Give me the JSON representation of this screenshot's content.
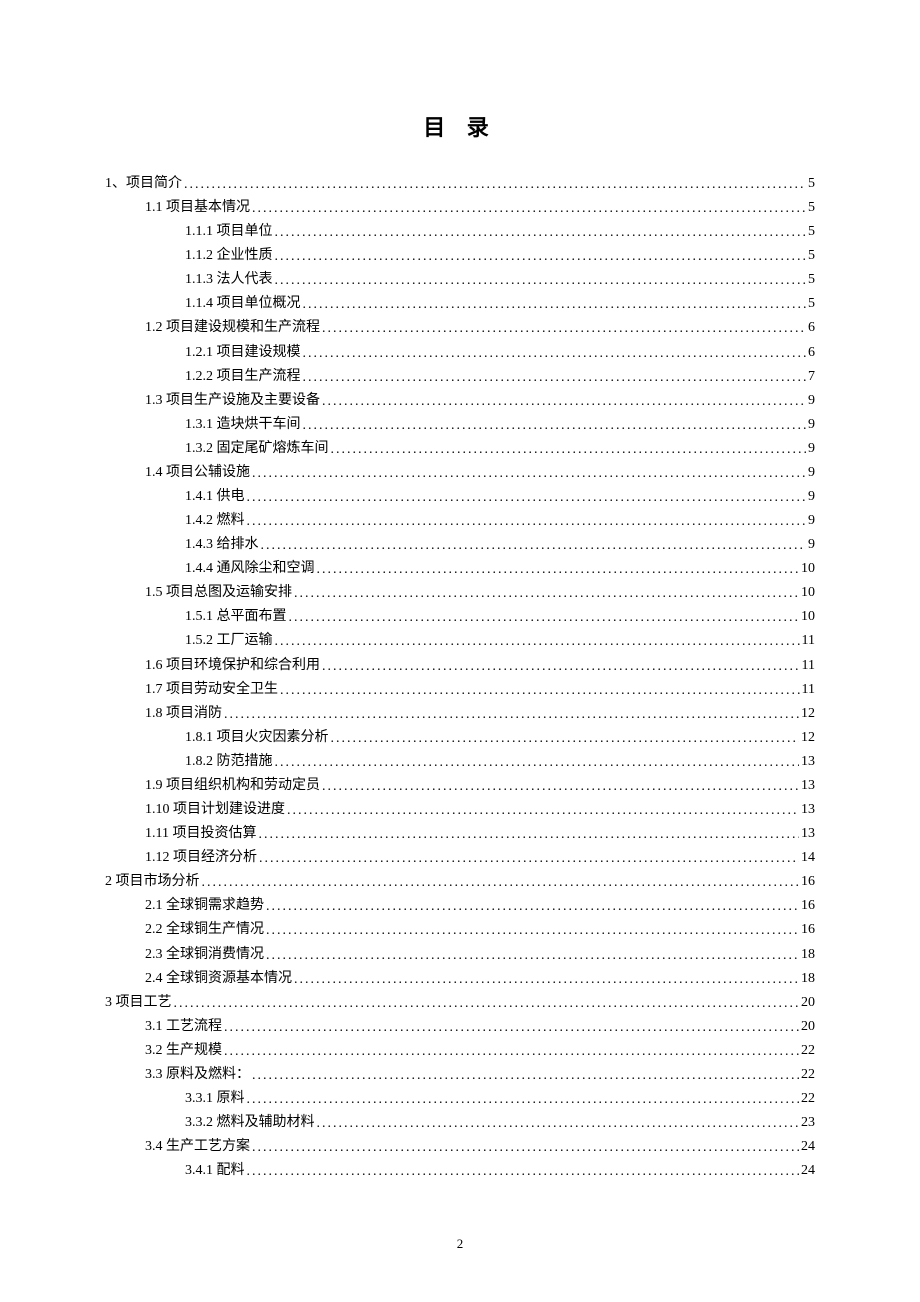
{
  "title": "目 录",
  "page_number": "2",
  "entries": [
    {
      "level": 0,
      "label": "1、项目简介",
      "page": "5"
    },
    {
      "level": 1,
      "label": "1.1 项目基本情况",
      "page": "5"
    },
    {
      "level": 2,
      "label": "1.1.1 项目单位",
      "page": "5"
    },
    {
      "level": 2,
      "label": "1.1.2 企业性质",
      "page": "5"
    },
    {
      "level": 2,
      "label": "1.1.3 法人代表",
      "page": "5"
    },
    {
      "level": 2,
      "label": "1.1.4 项目单位概况",
      "page": "5"
    },
    {
      "level": 1,
      "label": "1.2  项目建设规模和生产流程",
      "page": "6"
    },
    {
      "level": 2,
      "label": "1.2.1  项目建设规模",
      "page": "6"
    },
    {
      "level": 2,
      "label": "1.2.2  项目生产流程",
      "page": "7"
    },
    {
      "level": 1,
      "label": "1.3 项目生产设施及主要设备",
      "page": "9"
    },
    {
      "level": 2,
      "label": "1.3.1 造块烘干车间",
      "page": "9"
    },
    {
      "level": 2,
      "label": "1.3.2 固定尾矿熔炼车间",
      "page": "9"
    },
    {
      "level": 1,
      "label": "1.4 项目公辅设施",
      "page": "9"
    },
    {
      "level": 2,
      "label": "1.4.1 供电",
      "page": "9"
    },
    {
      "level": 2,
      "label": "1.4.2 燃料",
      "page": "9"
    },
    {
      "level": 2,
      "label": "1.4.3 给排水",
      "page": "9"
    },
    {
      "level": 2,
      "label": "1.4.4 通风除尘和空调",
      "page": "10"
    },
    {
      "level": 1,
      "label": "1.5 项目总图及运输安排",
      "page": "10"
    },
    {
      "level": 2,
      "label": "1.5.1  总平面布置",
      "page": "10"
    },
    {
      "level": 2,
      "label": "1.5.2  工厂运输",
      "page": "11"
    },
    {
      "level": 1,
      "label": "1.6 项目环境保护和综合利用",
      "page": "11"
    },
    {
      "level": 1,
      "label": "1.7 项目劳动安全卫生",
      "page": "11"
    },
    {
      "level": 1,
      "label": "1.8 项目消防",
      "page": "12"
    },
    {
      "level": 2,
      "label": "1.8.1  项目火灾因素分析",
      "page": "12"
    },
    {
      "level": 2,
      "label": "1.8.2  防范措施",
      "page": "13"
    },
    {
      "level": 1,
      "label": "1.9  项目组织机构和劳动定员",
      "page": "13"
    },
    {
      "level": 1,
      "label": "1.10  项目计划建设进度",
      "page": "13"
    },
    {
      "level": 1,
      "label": "1.11  项目投资估算",
      "page": "13"
    },
    {
      "level": 1,
      "label": "1.12 项目经济分析",
      "page": "14"
    },
    {
      "level": 0,
      "label": "2  项目市场分析",
      "page": "16"
    },
    {
      "level": 1,
      "label": "2.1 全球铜需求趋势",
      "page": "16"
    },
    {
      "level": 1,
      "label": "2.2  全球铜生产情况",
      "page": "16"
    },
    {
      "level": 1,
      "label": "2.3 全球铜消费情况",
      "page": "18"
    },
    {
      "level": 1,
      "label": "2.4 全球铜资源基本情况",
      "page": "18"
    },
    {
      "level": 0,
      "label": "3  项目工艺",
      "page": "20"
    },
    {
      "level": 1,
      "label": "3.1  工艺流程",
      "page": "20"
    },
    {
      "level": 1,
      "label": "3.2  生产规模",
      "page": "22"
    },
    {
      "level": 1,
      "label": "3.3  原料及燃料：",
      "page": "22"
    },
    {
      "level": 2,
      "label": "3.3.1  原料",
      "page": "22"
    },
    {
      "level": 2,
      "label": "3.3.2  燃料及辅助材料",
      "page": "23"
    },
    {
      "level": 1,
      "label": "3.4  生产工艺方案",
      "page": "24"
    },
    {
      "level": 2,
      "label": "3.4.1  配料",
      "page": "24"
    }
  ]
}
